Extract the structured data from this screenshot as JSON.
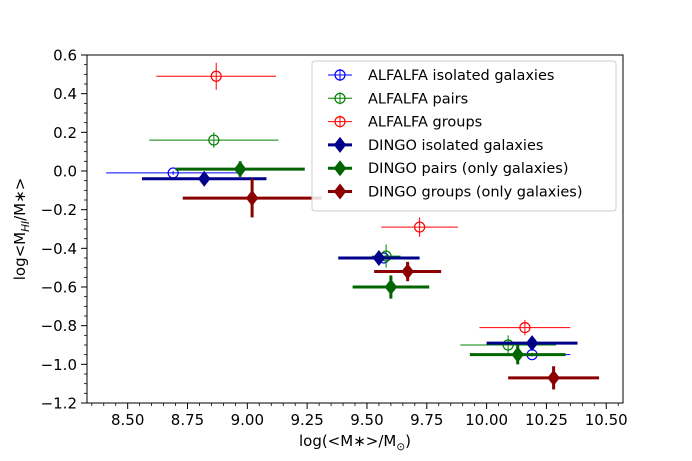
{
  "chart_data": {
    "type": "scatter",
    "xlabel": "log(<M∗>/M⊙)",
    "ylabel": "log<M_HI/M∗>",
    "ylabel_parts": {
      "pre": "log<M",
      "sub": "HI",
      "post": "/M∗>"
    },
    "xlabel_parts": {
      "pre": "log(<M∗>/M",
      "sub": "⊙",
      "post": ")"
    },
    "xlim": [
      8.33,
      10.57
    ],
    "ylim": [
      -1.2,
      0.6
    ],
    "xticks": [
      8.5,
      8.75,
      9.0,
      9.25,
      9.5,
      9.75,
      10.0,
      10.25,
      10.5
    ],
    "xtick_labels": [
      "8.50",
      "8.75",
      "9.00",
      "9.25",
      "9.50",
      "9.75",
      "10.00",
      "10.25",
      "10.50"
    ],
    "yticks": [
      -1.2,
      -1.0,
      -0.8,
      -0.6,
      -0.4,
      -0.2,
      0.0,
      0.2,
      0.4,
      0.6
    ],
    "ytick_labels": [
      "−1.2",
      "−1.0",
      "−0.8",
      "−0.6",
      "−0.4",
      "−0.2",
      "0.0",
      "0.2",
      "0.4",
      "0.6"
    ],
    "legend_position": "top-right",
    "series": [
      {
        "name": "ALFALFA isolated galaxies",
        "color": "#0000ff",
        "marker": "open-circle",
        "thick": false,
        "points": [
          {
            "x": 8.69,
            "y": -0.01,
            "xerr": 0.28,
            "yerr": 0.01
          },
          {
            "x": 9.57,
            "y": -0.45,
            "xerr": 0.05,
            "yerr": 0.01
          },
          {
            "x": 10.19,
            "y": -0.95,
            "xerr": 0.16,
            "yerr": 0.01
          }
        ]
      },
      {
        "name": "ALFALFA pairs",
        "color": "#008000",
        "marker": "open-circle",
        "thick": false,
        "points": [
          {
            "x": 8.86,
            "y": 0.16,
            "xerr": 0.27,
            "yerr": 0.04
          },
          {
            "x": 9.58,
            "y": -0.44,
            "xerr": 0.06,
            "yerr": 0.06
          },
          {
            "x": 10.09,
            "y": -0.9,
            "xerr": 0.2,
            "yerr": 0.05
          }
        ]
      },
      {
        "name": "ALFALFA groups",
        "color": "#ff0000",
        "marker": "open-circle",
        "thick": false,
        "points": [
          {
            "x": 8.87,
            "y": 0.49,
            "xerr": 0.25,
            "yerr": 0.07
          },
          {
            "x": 9.72,
            "y": -0.29,
            "xerr": 0.16,
            "yerr": 0.05
          },
          {
            "x": 10.16,
            "y": -0.81,
            "xerr": 0.19,
            "yerr": 0.04
          }
        ]
      },
      {
        "name": "DINGO isolated galaxies",
        "color": "#00008b",
        "marker": "filled-diamond",
        "thick": true,
        "points": [
          {
            "x": 8.82,
            "y": -0.04,
            "xerr": 0.26,
            "yerr": 0.02
          },
          {
            "x": 9.55,
            "y": -0.45,
            "xerr": 0.17,
            "yerr": 0.02
          },
          {
            "x": 10.19,
            "y": -0.89,
            "xerr": 0.19,
            "yerr": 0.03
          }
        ]
      },
      {
        "name": "DINGO pairs (only galaxies)",
        "color": "#006400",
        "marker": "filled-diamond",
        "thick": true,
        "points": [
          {
            "x": 8.97,
            "y": 0.01,
            "xerr": 0.27,
            "yerr": 0.04
          },
          {
            "x": 9.6,
            "y": -0.6,
            "xerr": 0.16,
            "yerr": 0.06
          },
          {
            "x": 10.13,
            "y": -0.95,
            "xerr": 0.2,
            "yerr": 0.05
          }
        ]
      },
      {
        "name": "DINGO groups (only galaxies)",
        "color": "#8b0000",
        "marker": "filled-diamond",
        "thick": true,
        "points": [
          {
            "x": 9.02,
            "y": -0.14,
            "xerr": 0.29,
            "yerr": 0.1
          },
          {
            "x": 9.67,
            "y": -0.52,
            "xerr": 0.14,
            "yerr": 0.05
          },
          {
            "x": 10.28,
            "y": -1.07,
            "xerr": 0.19,
            "yerr": 0.06
          }
        ]
      }
    ]
  }
}
